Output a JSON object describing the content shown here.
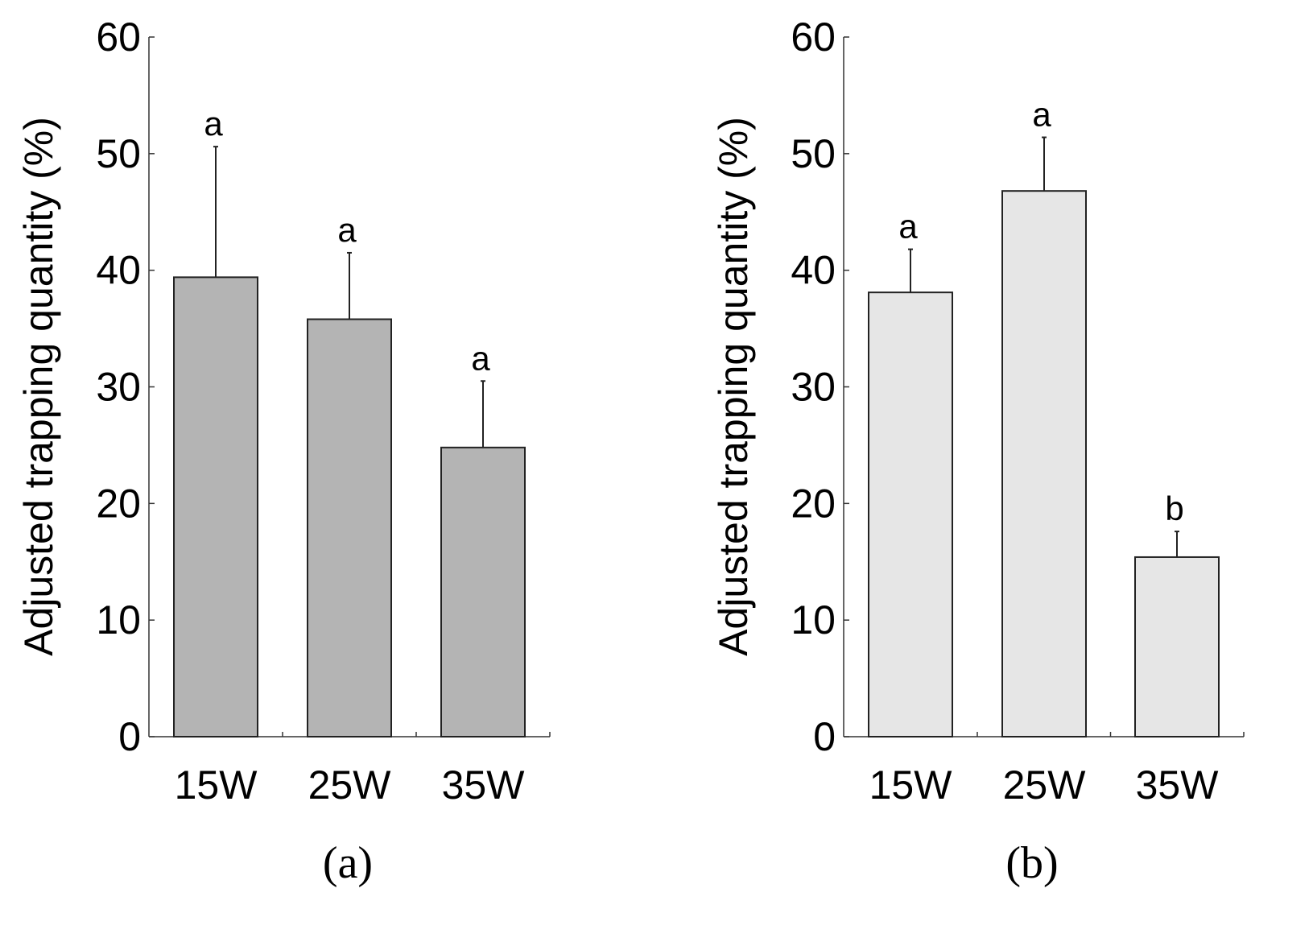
{
  "chart_data": [
    {
      "type": "bar",
      "panel_label": "(a)",
      "ylabel": "Adjusted trapping quantity  (%)",
      "xlabel": "",
      "ylim": [
        0,
        60
      ],
      "yticks": [
        0,
        10,
        20,
        30,
        40,
        50,
        60
      ],
      "categories": [
        "15W",
        "25W",
        "35W"
      ],
      "values": [
        39.4,
        35.8,
        24.8
      ],
      "errors": [
        11.2,
        5.7,
        5.7
      ],
      "significance": [
        "a",
        "a",
        "a"
      ],
      "bar_color": "#b4b4b4"
    },
    {
      "type": "bar",
      "panel_label": "(b)",
      "ylabel": "Adjusted trapping quantity  (%)",
      "xlabel": "",
      "ylim": [
        0,
        60
      ],
      "yticks": [
        0,
        10,
        20,
        30,
        40,
        50,
        60
      ],
      "categories": [
        "15W",
        "25W",
        "35W"
      ],
      "values": [
        38.1,
        46.8,
        15.4
      ],
      "errors": [
        3.7,
        4.6,
        2.2
      ],
      "significance": [
        "a",
        "a",
        "b"
      ],
      "bar_color": "#e6e6e6"
    }
  ]
}
